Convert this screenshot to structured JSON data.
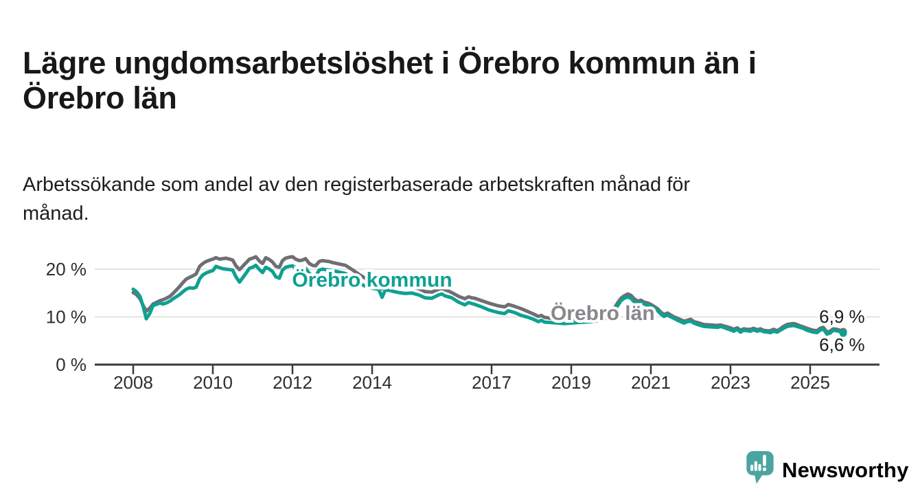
{
  "header": {
    "title": "Lägre ungdomsarbetslöshet i Örebro kommun än i\nÖrebro län",
    "subtitle": "Arbetssökande som andel av den registerbaserade arbetskraften månad för\nmånad."
  },
  "footer": {
    "brand": "Newsworthy",
    "brand_icon": "speech-bubble-bar-chart-icon"
  },
  "colors": {
    "kommun_teal": "#0ea192",
    "lan_gray": "#6e6e73",
    "lan_label_gray": "#87878c",
    "gridline": "#e3e3e3",
    "axis": "#3a3a3a",
    "tick_text": "#2e2e2e",
    "end_label_text": "#1b1b1b",
    "brand_teal": "#4aa5a2",
    "title_text": "#181818"
  },
  "chart_data": {
    "type": "line",
    "title": "Lägre ungdomsarbetslöshet i Örebro kommun än i Örebro län",
    "subtitle": "Arbetssökande som andel av den registerbaserade arbetskraften månad för månad.",
    "x_unit": "year (decimal = month fraction)",
    "y_unit": "percent of registered labour force",
    "xlim": [
      2008,
      2026.2
    ],
    "ylim": [
      0,
      24
    ],
    "grid": "horizontal only",
    "legend": "inline series labels",
    "x_axis": {
      "ticks": [
        2008,
        2010,
        2012,
        2014,
        2017,
        2019,
        2021,
        2023,
        2025
      ],
      "labels": [
        "2008",
        "2010",
        "2012",
        "2014",
        "2017",
        "2019",
        "2021",
        "2023",
        "2025"
      ]
    },
    "y_axis": {
      "ticks": [
        0,
        10,
        20
      ],
      "labels": [
        "0 %",
        "10 %",
        "20 %"
      ]
    },
    "columns": [
      "year",
      "Örebro kommun",
      "Örebro län"
    ],
    "series_meta": [
      {
        "name": "Örebro kommun",
        "color": "#0ea192",
        "label_color": "#0ea192",
        "end_value": 6.6,
        "end_label": "6,6 %",
        "label_at": {
          "x": 2014.0,
          "y": 17.8
        }
      },
      {
        "name": "Örebro län",
        "color": "#6e6e73",
        "label_color": "#87878c",
        "end_value": 6.9,
        "end_label": "6,9 %",
        "label_at": {
          "x": 2019.79,
          "y": 10.8
        }
      }
    ],
    "end_labels": [
      {
        "text": "6,9 %",
        "x": 2025.8,
        "y": 10.1
      },
      {
        "text": "6,6 %",
        "x": 2025.8,
        "y": 4.2
      }
    ],
    "points": [
      [
        2008.0,
        15.8,
        15.1
      ],
      [
        2008.08,
        15.3,
        14.7
      ],
      [
        2008.17,
        14.3,
        13.8
      ],
      [
        2008.25,
        12.2,
        12.4
      ],
      [
        2008.33,
        9.6,
        11.2
      ],
      [
        2008.42,
        10.8,
        11.9
      ],
      [
        2008.5,
        12.4,
        12.7
      ],
      [
        2008.58,
        12.6,
        13.0
      ],
      [
        2008.67,
        12.9,
        13.4
      ],
      [
        2008.75,
        12.7,
        13.6
      ],
      [
        2008.83,
        12.9,
        13.9
      ],
      [
        2008.92,
        13.3,
        14.3
      ],
      [
        2009.0,
        13.8,
        14.9
      ],
      [
        2009.08,
        14.2,
        15.6
      ],
      [
        2009.17,
        14.7,
        16.4
      ],
      [
        2009.25,
        15.3,
        17.2
      ],
      [
        2009.33,
        15.8,
        17.9
      ],
      [
        2009.42,
        16.1,
        18.3
      ],
      [
        2009.5,
        16.0,
        18.6
      ],
      [
        2009.58,
        16.2,
        19.0
      ],
      [
        2009.67,
        18.0,
        20.6
      ],
      [
        2009.75,
        18.8,
        21.2
      ],
      [
        2009.83,
        19.2,
        21.6
      ],
      [
        2009.92,
        19.5,
        21.9
      ],
      [
        2010.0,
        19.7,
        22.1
      ],
      [
        2010.08,
        20.6,
        22.4
      ],
      [
        2010.17,
        20.3,
        22.1
      ],
      [
        2010.25,
        20.1,
        22.2
      ],
      [
        2010.33,
        20.0,
        22.3
      ],
      [
        2010.42,
        19.9,
        22.1
      ],
      [
        2010.5,
        19.8,
        21.9
      ],
      [
        2010.58,
        18.4,
        20.7
      ],
      [
        2010.67,
        17.3,
        19.9
      ],
      [
        2010.75,
        18.2,
        20.6
      ],
      [
        2010.83,
        19.1,
        21.3
      ],
      [
        2010.92,
        20.2,
        22.1
      ],
      [
        2011.0,
        20.4,
        22.3
      ],
      [
        2011.08,
        20.8,
        22.6
      ],
      [
        2011.17,
        19.9,
        21.7
      ],
      [
        2011.25,
        19.3,
        21.2
      ],
      [
        2011.33,
        20.4,
        22.4
      ],
      [
        2011.42,
        20.0,
        22.0
      ],
      [
        2011.5,
        19.5,
        21.5
      ],
      [
        2011.58,
        18.4,
        20.6
      ],
      [
        2011.67,
        18.1,
        20.4
      ],
      [
        2011.75,
        19.8,
        21.8
      ],
      [
        2011.83,
        20.4,
        22.3
      ],
      [
        2011.92,
        20.6,
        22.5
      ],
      [
        2012.0,
        20.7,
        22.6
      ],
      [
        2012.08,
        20.2,
        22.1
      ],
      [
        2012.17,
        19.9,
        21.8
      ],
      [
        2012.25,
        19.7,
        21.9
      ],
      [
        2012.33,
        20.2,
        22.2
      ],
      [
        2012.42,
        19.1,
        21.2
      ],
      [
        2012.5,
        18.6,
        20.8
      ],
      [
        2012.58,
        18.5,
        20.7
      ],
      [
        2012.67,
        19.8,
        21.6
      ],
      [
        2012.75,
        20.0,
        21.8
      ],
      [
        2012.83,
        19.9,
        21.7
      ],
      [
        2012.92,
        19.8,
        21.6
      ],
      [
        2013.0,
        19.7,
        21.4
      ],
      [
        2013.17,
        19.4,
        21.1
      ],
      [
        2013.33,
        19.1,
        20.8
      ],
      [
        2013.5,
        18.2,
        19.9
      ],
      [
        2013.67,
        17.2,
        18.9
      ],
      [
        2013.83,
        16.4,
        18.1
      ],
      [
        2014.0,
        16.0,
        17.6
      ],
      [
        2014.08,
        15.9,
        17.4
      ],
      [
        2014.17,
        15.7,
        17.2
      ],
      [
        2014.25,
        14.1,
        15.9
      ],
      [
        2014.33,
        15.6,
        17.0
      ],
      [
        2014.42,
        15.6,
        16.9
      ],
      [
        2014.5,
        15.4,
        16.7
      ],
      [
        2014.67,
        15.1,
        16.4
      ],
      [
        2014.83,
        14.9,
        16.2
      ],
      [
        2015.0,
        15.0,
        16.3
      ],
      [
        2015.17,
        14.6,
        15.9
      ],
      [
        2015.33,
        14.0,
        15.3
      ],
      [
        2015.5,
        13.9,
        15.2
      ],
      [
        2015.67,
        14.6,
        15.8
      ],
      [
        2015.75,
        14.8,
        16.0
      ],
      [
        2015.83,
        14.4,
        15.7
      ],
      [
        2015.92,
        14.2,
        15.4
      ],
      [
        2016.0,
        14.0,
        15.1
      ],
      [
        2016.17,
        13.1,
        14.3
      ],
      [
        2016.33,
        12.5,
        13.8
      ],
      [
        2016.42,
        13.0,
        14.2
      ],
      [
        2016.5,
        12.8,
        14.0
      ],
      [
        2016.58,
        12.6,
        13.9
      ],
      [
        2016.75,
        12.1,
        13.4
      ],
      [
        2016.92,
        11.5,
        12.9
      ],
      [
        2017.0,
        11.3,
        12.7
      ],
      [
        2017.17,
        10.9,
        12.3
      ],
      [
        2017.33,
        10.7,
        12.1
      ],
      [
        2017.42,
        11.3,
        12.6
      ],
      [
        2017.5,
        11.1,
        12.4
      ],
      [
        2017.58,
        10.9,
        12.2
      ],
      [
        2017.75,
        10.3,
        11.7
      ],
      [
        2017.92,
        9.9,
        11.1
      ],
      [
        2018.08,
        9.4,
        10.5
      ],
      [
        2018.17,
        9.0,
        10.1
      ],
      [
        2018.25,
        9.3,
        10.3
      ],
      [
        2018.33,
        8.9,
        9.9
      ],
      [
        2018.5,
        8.8,
        9.7
      ],
      [
        2018.67,
        8.7,
        9.6
      ],
      [
        2018.83,
        8.6,
        9.5
      ],
      [
        2019.0,
        8.7,
        9.5
      ],
      [
        2019.17,
        8.8,
        9.6
      ],
      [
        2019.33,
        8.9,
        9.6
      ],
      [
        2019.5,
        9.0,
        9.7
      ],
      [
        2019.67,
        9.2,
        9.9
      ],
      [
        2019.83,
        9.5,
        10.2
      ],
      [
        2020.0,
        10.4,
        11.0
      ],
      [
        2020.08,
        11.2,
        11.8
      ],
      [
        2020.17,
        12.4,
        13.0
      ],
      [
        2020.25,
        13.4,
        13.9
      ],
      [
        2020.33,
        13.9,
        14.4
      ],
      [
        2020.42,
        14.2,
        14.8
      ],
      [
        2020.5,
        13.9,
        14.5
      ],
      [
        2020.58,
        13.2,
        13.8
      ],
      [
        2020.67,
        12.8,
        13.3
      ],
      [
        2020.75,
        13.0,
        13.5
      ],
      [
        2020.83,
        12.7,
        13.1
      ],
      [
        2020.92,
        12.4,
        12.9
      ],
      [
        2021.0,
        12.2,
        12.6
      ],
      [
        2021.08,
        11.8,
        12.2
      ],
      [
        2021.17,
        11.3,
        11.7
      ],
      [
        2021.25,
        10.6,
        11.0
      ],
      [
        2021.33,
        10.1,
        10.5
      ],
      [
        2021.42,
        10.4,
        10.8
      ],
      [
        2021.5,
        10.0,
        10.4
      ],
      [
        2021.58,
        9.7,
        10.0
      ],
      [
        2021.67,
        9.3,
        9.7
      ],
      [
        2021.75,
        9.0,
        9.4
      ],
      [
        2021.83,
        8.7,
        9.1
      ],
      [
        2021.92,
        9.0,
        9.3
      ],
      [
        2022.0,
        9.1,
        9.5
      ],
      [
        2022.08,
        8.7,
        9.0
      ],
      [
        2022.17,
        8.4,
        8.8
      ],
      [
        2022.25,
        8.2,
        8.6
      ],
      [
        2022.33,
        8.0,
        8.4
      ],
      [
        2022.5,
        7.9,
        8.3
      ],
      [
        2022.67,
        7.8,
        8.2
      ],
      [
        2022.75,
        8.0,
        8.3
      ],
      [
        2022.83,
        7.8,
        8.1
      ],
      [
        2022.92,
        7.5,
        7.9
      ],
      [
        2023.0,
        7.3,
        7.7
      ],
      [
        2023.08,
        7.0,
        7.4
      ],
      [
        2023.17,
        7.4,
        7.7
      ],
      [
        2023.25,
        6.8,
        7.2
      ],
      [
        2023.33,
        7.2,
        7.5
      ],
      [
        2023.42,
        7.1,
        7.4
      ],
      [
        2023.5,
        7.0,
        7.4
      ],
      [
        2023.58,
        7.3,
        7.6
      ],
      [
        2023.67,
        7.0,
        7.3
      ],
      [
        2023.75,
        7.2,
        7.5
      ],
      [
        2023.83,
        6.9,
        7.2
      ],
      [
        2023.92,
        6.8,
        7.1
      ],
      [
        2024.0,
        6.7,
        7.1
      ],
      [
        2024.08,
        7.0,
        7.4
      ],
      [
        2024.17,
        6.8,
        7.1
      ],
      [
        2024.25,
        7.2,
        7.5
      ],
      [
        2024.33,
        7.6,
        8.0
      ],
      [
        2024.42,
        8.0,
        8.4
      ],
      [
        2024.5,
        8.1,
        8.5
      ],
      [
        2024.58,
        8.2,
        8.6
      ],
      [
        2024.67,
        8.0,
        8.4
      ],
      [
        2024.75,
        7.8,
        8.1
      ],
      [
        2024.83,
        7.6,
        7.9
      ],
      [
        2024.92,
        7.2,
        7.6
      ],
      [
        2025.0,
        7.0,
        7.4
      ],
      [
        2025.08,
        6.8,
        7.2
      ],
      [
        2025.17,
        6.7,
        7.1
      ],
      [
        2025.25,
        7.2,
        7.6
      ],
      [
        2025.33,
        7.5,
        7.8
      ],
      [
        2025.42,
        6.4,
        6.8
      ],
      [
        2025.5,
        6.6,
        7.0
      ],
      [
        2025.58,
        7.2,
        7.5
      ],
      [
        2025.67,
        7.1,
        7.4
      ],
      [
        2025.75,
        6.9,
        7.2
      ],
      [
        2025.83,
        6.6,
        6.9
      ]
    ]
  }
}
